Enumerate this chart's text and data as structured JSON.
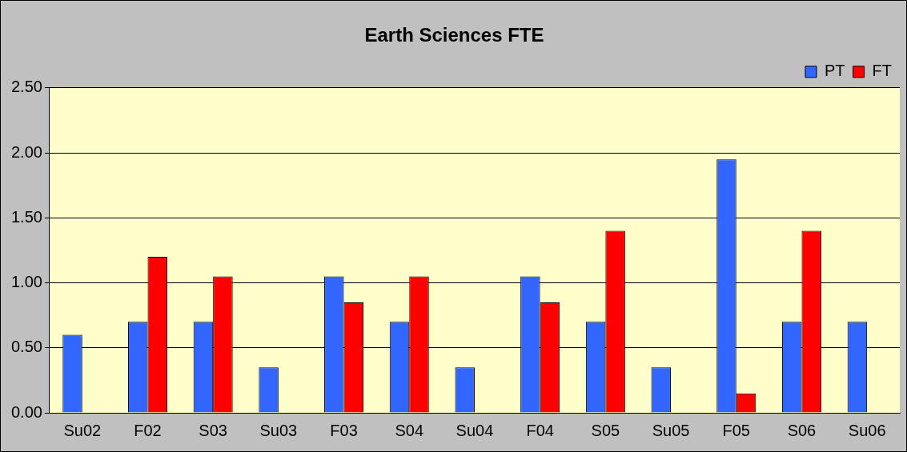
{
  "chart_data": {
    "type": "bar",
    "title": "Earth Sciences FTE",
    "categories": [
      "Su02",
      "F02",
      "S03",
      "Su03",
      "F03",
      "S04",
      "Su04",
      "F04",
      "S05",
      "Su05",
      "F05",
      "S06",
      "Su06"
    ],
    "series": [
      {
        "name": "PT",
        "color": "#3366ff",
        "values": [
          0.6,
          0.7,
          0.7,
          0.35,
          1.05,
          0.7,
          0.35,
          1.05,
          0.7,
          0.35,
          1.95,
          0.7,
          0.7
        ]
      },
      {
        "name": "FT",
        "color": "#ff0000",
        "values": [
          null,
          1.2,
          1.05,
          null,
          0.85,
          1.05,
          null,
          0.85,
          1.4,
          null,
          0.15,
          1.4,
          null
        ]
      }
    ],
    "ylim": [
      0,
      2.5
    ],
    "yticks": [
      {
        "value": 0,
        "label": "0.00"
      },
      {
        "value": 0.5,
        "label": "0.50"
      },
      {
        "value": 1,
        "label": "1.00"
      },
      {
        "value": 1.5,
        "label": "1.50"
      },
      {
        "value": 2,
        "label": "2.00"
      },
      {
        "value": 2.5,
        "label": "2.50"
      }
    ],
    "grid": "y",
    "legend": "top right"
  }
}
